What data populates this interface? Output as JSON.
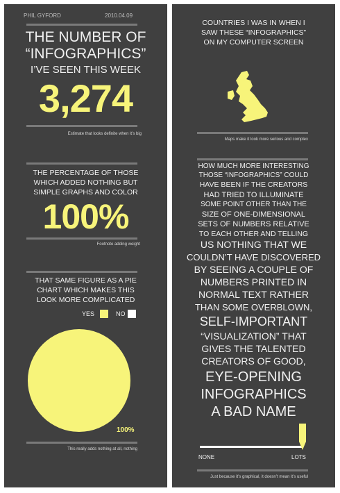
{
  "left": {
    "author": "PHIL GYFORD",
    "date": "2010.04.09",
    "title_lines": [
      "THE NUMBER OF",
      "“INFOGRAPHICS”",
      "I’VE SEEN THIS WEEK"
    ],
    "big_number": "3,274",
    "note1": "Estimate that looks definite when it’s big",
    "pct_heading_lines": [
      "THE PERCENTAGE OF THOSE",
      "WHICH ADDED NOTHING BUT",
      "SIMPLE GRAPHS AND COLOR"
    ],
    "big_percent": "100%",
    "note2": "Footnote adding weight",
    "pie_heading_lines": [
      "THAT SAME FIGURE AS A PIE",
      "CHART WHICH MAKES THIS",
      "LOOK MORE COMPLICATED"
    ],
    "legend_yes": "YES",
    "legend_no": "NO",
    "pie_label": "100%",
    "note3": "This really adds nothing at all, nothing"
  },
  "right": {
    "countries_heading_lines": [
      "COUNTRIES I WAS IN WHEN I",
      "SAW THESE “INFOGRAPHICS”",
      "ON MY COMPUTER SCREEN"
    ],
    "note_map": "Maps make it look more serious and complex",
    "rant_lines": [
      "HOW MUCH MORE INTERESTING",
      "THOSE “INFOGRAPHICS” COULD",
      "HAVE BEEN IF THE CREATORS",
      "HAD TRIED TO ILLUMINATE",
      "SOME POINT OTHER THAN THE",
      "SIZE OF ONE-DIMENSIONAL",
      "SETS OF NUMBERS RELATIVE",
      "TO EACH OTHER AND TELLING",
      "US NOTHING THAT WE",
      "COULDN’T HAVE DISCOVERED",
      "BY SEEING A COUPLE OF",
      "NUMBERS PRINTED IN",
      "NORMAL TEXT RATHER",
      "THAN SOME OVERBLOWN,",
      "SELF-IMPORTANT",
      "“VISUALIZATION” THAT",
      "GIVES THE TALENTED",
      "CREATORS OF GOOD,",
      "EYE-OPENING",
      "INFOGRAPHICS",
      "A BAD NAME"
    ],
    "scale_left": "NONE",
    "scale_right": "LOTS",
    "scale_value": 1.0,
    "note_final": "Just because it’s graphical, it doesn’t mean it’s useful"
  },
  "colors": {
    "panel": "#404040",
    "accent": "#f7f47a",
    "text": "#f0f0f0",
    "rule": "#7a7a7a",
    "white": "#ffffff"
  }
}
